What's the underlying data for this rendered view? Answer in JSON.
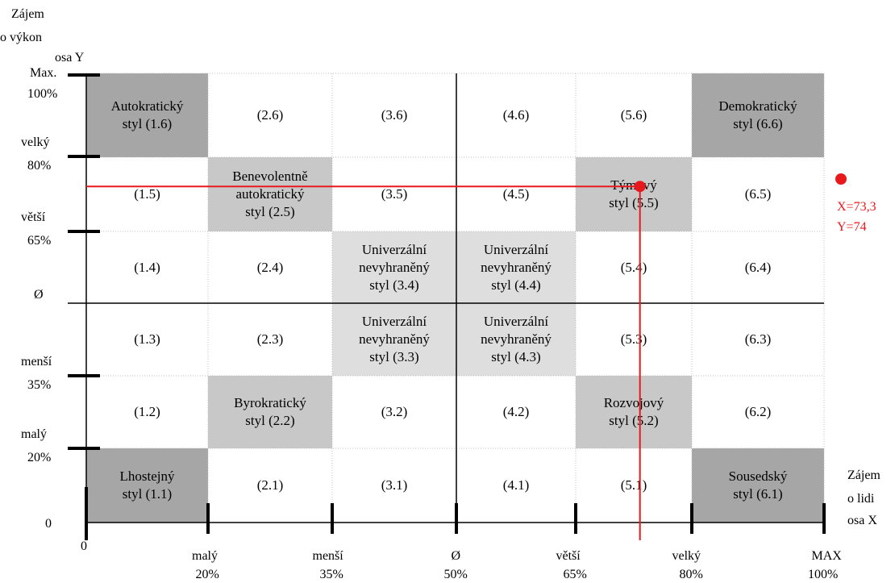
{
  "y_axis": {
    "title_line1": "Zájem",
    "title_line2": "o výkon",
    "name": "osa Y",
    "ticks": [
      {
        "word": "Max.",
        "pct": "100%"
      },
      {
        "word": "velký",
        "pct": "80%"
      },
      {
        "word": "větší",
        "pct": "65%"
      },
      {
        "word": "",
        "pct": "Ø"
      },
      {
        "word": "menší",
        "pct": "35%"
      },
      {
        "word": "malý",
        "pct": "20%"
      },
      {
        "word": "",
        "pct": "0"
      }
    ]
  },
  "x_axis": {
    "title_line1": "Zájem",
    "title_line2": "o lidi",
    "name": "osa X",
    "ticks": [
      {
        "word": "",
        "pct": "0"
      },
      {
        "word": "malý",
        "pct": "20%"
      },
      {
        "word": "menší",
        "pct": "35%"
      },
      {
        "word": "Ø",
        "pct": "50%"
      },
      {
        "word": "větší",
        "pct": "65%"
      },
      {
        "word": "velký",
        "pct": "80%"
      },
      {
        "word": "MAX",
        "pct": "100%"
      }
    ]
  },
  "grid": {
    "rows": [
      [
        "Autokratický\nstyl (1.6)",
        "(2.6)",
        "(3.6)",
        "(4.6)",
        "(5.6)",
        "Demokratický\nstyl (6.6)"
      ],
      [
        "(1.5)",
        "Benevolentně\nautokratický\nstyl (2.5)",
        "(3.5)",
        "(4.5)",
        "Týmový\nstyl (5.5)",
        "(6.5)"
      ],
      [
        "(1.4)",
        "(2.4)",
        "Univerzální\nnevyhraněný\nstyl (3.4)",
        "Univerzální\nnevyhraněný\nstyl (4.4)",
        "(5.4)",
        "(6.4)"
      ],
      [
        "(1.3)",
        "(2.3)",
        "Univerzální\nnevyhraněný\nstyl (3.3)",
        "Univerzální\nnevyhraněný\nstyl (4.3)",
        "(5.3)",
        "(6.3)"
      ],
      [
        "(1.2)",
        "Byrokratický\nstyl (2.2)",
        "(3.2)",
        "(4.2)",
        "Rozvojový\nstyl (5.2)",
        "(6.2)"
      ],
      [
        "Lhostejný\nstyl (1.1)",
        "(2.1)",
        "(3.1)",
        "(4.1)",
        "(5.1)",
        "Sousedský\nstyl (6.1)"
      ]
    ],
    "shading": [
      [
        "dark",
        "none",
        "none",
        "none",
        "none",
        "dark"
      ],
      [
        "none",
        "mid",
        "none",
        "none",
        "mid",
        "none"
      ],
      [
        "none",
        "none",
        "light",
        "light",
        "none",
        "none"
      ],
      [
        "none",
        "none",
        "light",
        "light",
        "none",
        "none"
      ],
      [
        "none",
        "mid",
        "none",
        "none",
        "mid",
        "none"
      ],
      [
        "dark",
        "none",
        "none",
        "none",
        "none",
        "dark"
      ]
    ]
  },
  "colors": {
    "dark": "#a6a6a6",
    "mid": "#c8c8c8",
    "light": "#dedede",
    "none": "#ffffff",
    "marker": "#e8191d"
  },
  "marker": {
    "x": 73.3,
    "y": 74,
    "label_x": "X=73,3",
    "label_y": "Y=74"
  }
}
